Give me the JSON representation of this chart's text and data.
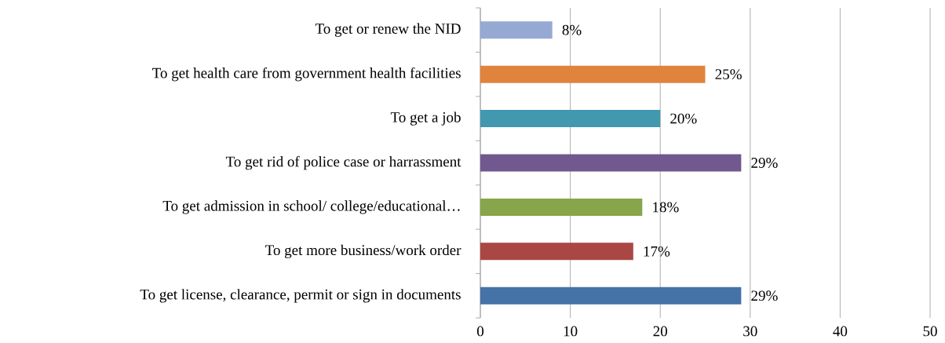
{
  "chart_data": {
    "type": "bar",
    "orientation": "horizontal",
    "categories": [
      "To get or renew the NID",
      "To get health care from government health facilities",
      "To get a job",
      "To get rid of police case or harrassment",
      "To get admission in school/ college/educational…",
      "To get more business/work order",
      "To get license, clearance, permit or sign in documents"
    ],
    "values": [
      8,
      25,
      20,
      29,
      18,
      17,
      29
    ],
    "colors": [
      "#95a9d3",
      "#e0833c",
      "#4198af",
      "#71588f",
      "#87a54a",
      "#aa4744",
      "#4572a7"
    ],
    "value_labels": [
      "8%",
      "25%",
      "20%",
      "29%",
      "18%",
      "17%",
      "29%"
    ],
    "xlim": [
      0,
      50
    ],
    "xticks": [
      0,
      10,
      20,
      30,
      40,
      50
    ],
    "grid": "x"
  }
}
